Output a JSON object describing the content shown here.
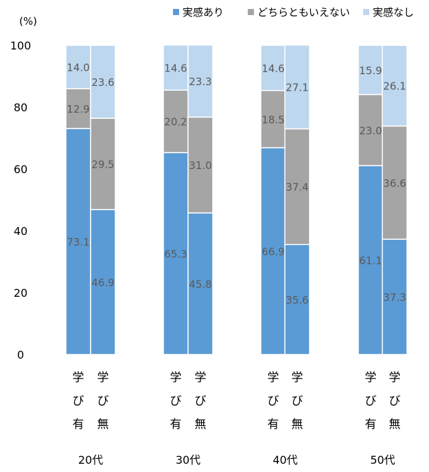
{
  "chart_data": {
    "type": "bar",
    "stacked": true,
    "percent": true,
    "unit_label": "(%)",
    "ylim": [
      0,
      100
    ],
    "yticks": [
      0,
      20,
      40,
      60,
      80,
      100
    ],
    "legend_position": "top-right",
    "grid": false,
    "groups": [
      "20代",
      "30代",
      "40代",
      "50代"
    ],
    "bar_labels": [
      [
        "学",
        "び",
        "有"
      ],
      [
        "学",
        "び",
        "無"
      ]
    ],
    "series": [
      {
        "name": "実感あり",
        "color": "#5B9BD5",
        "values": [
          73.1,
          46.9,
          65.3,
          45.8,
          66.9,
          35.6,
          61.1,
          37.3
        ]
      },
      {
        "name": "どちらともいえない",
        "color": "#A5A5A5",
        "values": [
          12.9,
          29.5,
          20.2,
          31.0,
          18.5,
          37.4,
          23.0,
          36.6
        ]
      },
      {
        "name": "実感なし",
        "color": "#BDD7EE",
        "values": [
          14.0,
          23.6,
          14.6,
          23.3,
          14.6,
          27.1,
          15.9,
          26.1
        ]
      }
    ]
  }
}
